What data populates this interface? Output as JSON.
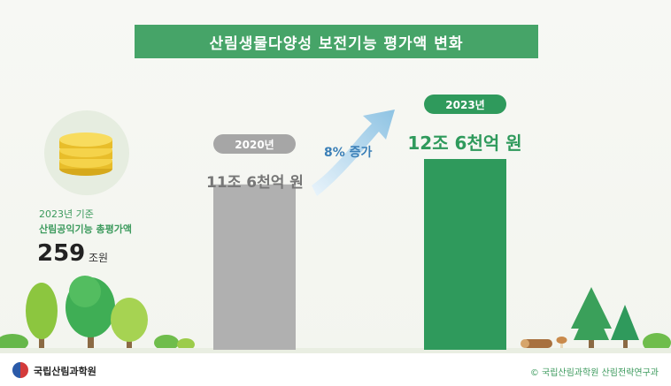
{
  "title": "산림생물다양성 보전기능 평가액 변화",
  "summary": {
    "year_label": "2023년 기준",
    "label": "산림공익기능 총평가액",
    "value": "259",
    "unit": "조원"
  },
  "growth_label": "8% 증가",
  "footer": {
    "org": "국립산림과학원",
    "credit": "© 국립산림과학원 산림전략연구과"
  },
  "colors": {
    "accent": "#46a468",
    "bar_2020": "#b0b0b0",
    "bar_2023": "#2f9a5c",
    "arrow": "#9fcbe6"
  },
  "icons": [
    "coin-stack-icon",
    "growth-arrow-icon",
    "tree-icon",
    "bush-icon",
    "log-icon",
    "mushroom-icon",
    "government-emblem-icon"
  ],
  "chart_data": {
    "type": "bar",
    "title": "산림생물다양성 보전기능 평가액 변화",
    "categories": [
      "2020년",
      "2023년"
    ],
    "values": [
      11.6,
      12.6
    ],
    "value_labels": [
      "11조 6천억 원",
      "12조 6천억 원"
    ],
    "unit": "조 원",
    "grid": false,
    "legend": "none"
  }
}
